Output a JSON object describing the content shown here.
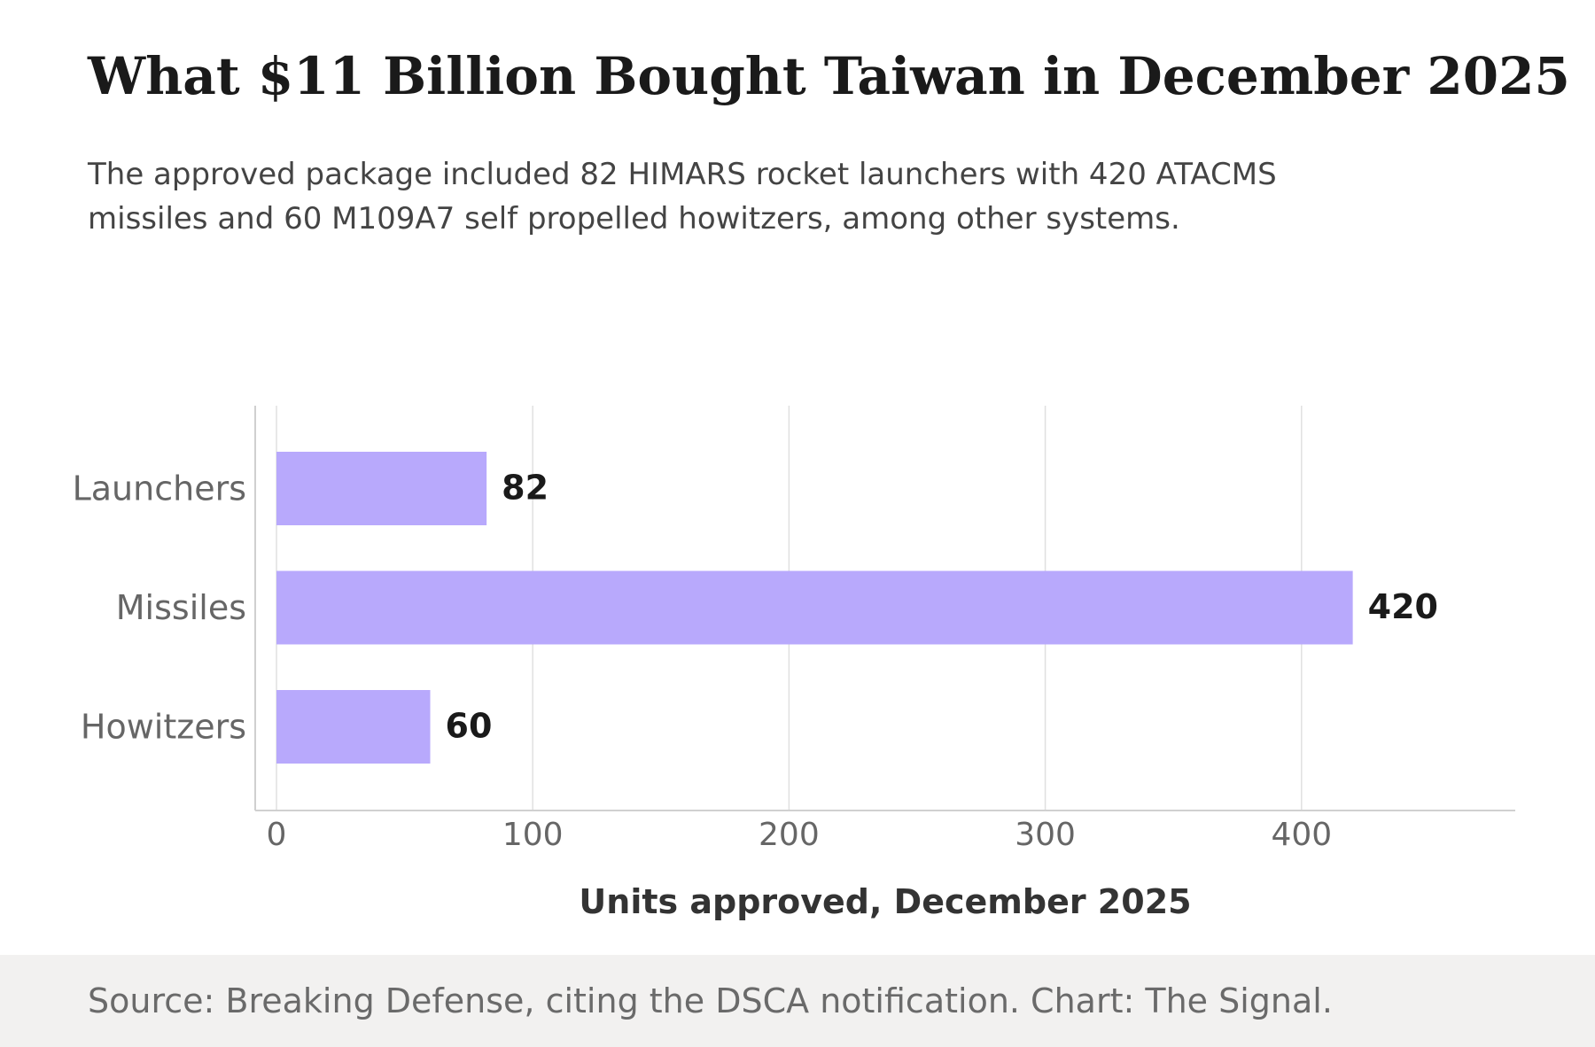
{
  "header": {
    "title": "What $11 Billion Bought Taiwan in December 2025",
    "subtitle": "The approved package included 82 HIMARS rocket launchers with 420 ATACMS missiles and 60 M109A7 self propelled howitzers, among other systems."
  },
  "chart_data": {
    "type": "bar",
    "orientation": "horizontal",
    "categories": [
      "Launchers",
      "Missiles",
      "Howitzers"
    ],
    "values": [
      82,
      420,
      60
    ],
    "data_labels": [
      "82",
      "420",
      "60"
    ],
    "xlabel": "Units approved, December 2025",
    "ylabel": "",
    "xlim": [
      0,
      480
    ],
    "xticks": [
      0,
      100,
      200,
      300,
      400
    ],
    "xtick_labels": [
      "0",
      "100",
      "200",
      "300",
      "400"
    ],
    "grid": "vertical",
    "legend": "none",
    "colors": {
      "bar": "#b8a9fc",
      "grid": "#e0e0e0",
      "axis": "#d0d0d0",
      "tick_label": "#666666",
      "data_label": "#1a1a1a",
      "axis_title": "#333333"
    }
  },
  "footer": {
    "source": "Source: Breaking Defense, citing the DSCA notification. Chart: The Signal."
  }
}
